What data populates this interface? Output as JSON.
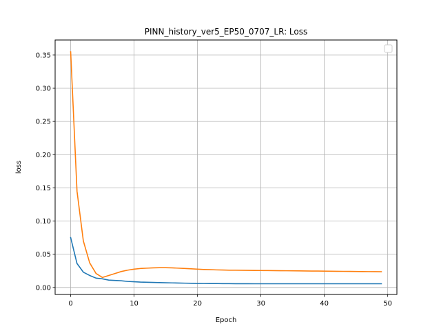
{
  "chart_data": {
    "type": "line",
    "title": "PINN_history_ver5_EP50_0707_LR: Loss",
    "xlabel": "Epoch",
    "ylabel": "loss",
    "xlim": [
      -2.45,
      51.45
    ],
    "ylim": [
      -0.0106,
      0.3727
    ],
    "xticks": [
      0,
      10,
      20,
      30,
      40,
      50
    ],
    "xtick_labels": [
      "0",
      "10",
      "20",
      "30",
      "40",
      "50"
    ],
    "yticks": [
      0.0,
      0.05,
      0.1,
      0.15,
      0.2,
      0.25,
      0.3,
      0.35
    ],
    "ytick_labels": [
      "0.00",
      "0.05",
      "0.10",
      "0.15",
      "0.20",
      "0.25",
      "0.30",
      "0.35"
    ],
    "grid": true,
    "legend": {
      "placement": "upper-right",
      "entries": []
    },
    "series": [
      {
        "color": "#1f77b4",
        "x": [
          0,
          1,
          2,
          3,
          4,
          5,
          6,
          7,
          8,
          9,
          10,
          11,
          12,
          13,
          14,
          15,
          16,
          17,
          18,
          19,
          20,
          21,
          22,
          23,
          24,
          25,
          26,
          27,
          28,
          29,
          30,
          31,
          32,
          33,
          34,
          35,
          36,
          37,
          38,
          39,
          40,
          41,
          42,
          43,
          44,
          45,
          46,
          47,
          48,
          49
        ],
        "y": [
          0.075,
          0.036,
          0.023,
          0.018,
          0.014,
          0.013,
          0.011,
          0.0105,
          0.01,
          0.009,
          0.0085,
          0.008,
          0.0078,
          0.0075,
          0.0072,
          0.007,
          0.0068,
          0.0066,
          0.0064,
          0.0062,
          0.006,
          0.0059,
          0.0058,
          0.0058,
          0.0057,
          0.0057,
          0.0056,
          0.0056,
          0.0056,
          0.0055,
          0.0055,
          0.0055,
          0.0055,
          0.0055,
          0.0055,
          0.0055,
          0.0055,
          0.0055,
          0.0055,
          0.0055,
          0.0055,
          0.0055,
          0.0055,
          0.0055,
          0.0055,
          0.0055,
          0.0055,
          0.0055,
          0.0055,
          0.0055
        ]
      },
      {
        "color": "#ff7f0e",
        "x": [
          0,
          1,
          2,
          3,
          4,
          5,
          6,
          7,
          8,
          9,
          10,
          11,
          12,
          13,
          14,
          15,
          16,
          17,
          18,
          19,
          20,
          21,
          22,
          23,
          24,
          25,
          26,
          27,
          28,
          29,
          30,
          31,
          32,
          33,
          34,
          35,
          36,
          37,
          38,
          39,
          40,
          41,
          42,
          43,
          44,
          45,
          46,
          47,
          48,
          49
        ],
        "y": [
          0.355,
          0.145,
          0.07,
          0.037,
          0.021,
          0.015,
          0.018,
          0.021,
          0.024,
          0.026,
          0.0275,
          0.0285,
          0.029,
          0.0295,
          0.0297,
          0.0297,
          0.0295,
          0.029,
          0.0285,
          0.028,
          0.0275,
          0.027,
          0.0267,
          0.0264,
          0.0262,
          0.026,
          0.0259,
          0.0258,
          0.0257,
          0.0256,
          0.0255,
          0.0254,
          0.0253,
          0.0252,
          0.0251,
          0.025,
          0.0249,
          0.0248,
          0.0247,
          0.0246,
          0.0245,
          0.0244,
          0.0243,
          0.0242,
          0.0241,
          0.024,
          0.0239,
          0.0238,
          0.0237,
          0.0236
        ]
      }
    ]
  }
}
